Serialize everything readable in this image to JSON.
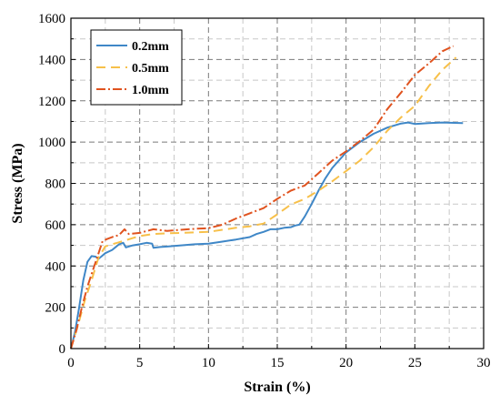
{
  "chart_data": {
    "type": "line",
    "xlabel": "Strain (%)",
    "ylabel": "Stress (MPa)",
    "xlim": [
      0,
      30
    ],
    "ylim": [
      0,
      1600
    ],
    "xticks": [
      0,
      5,
      10,
      15,
      20,
      25,
      30
    ],
    "yticks": [
      0,
      200,
      400,
      600,
      800,
      1000,
      1200,
      1400,
      1600
    ],
    "grid": true,
    "legend_position": "top-left",
    "series": [
      {
        "name": "0.2mm",
        "color": "#3f87c7",
        "dash": "solid",
        "points": [
          [
            0,
            0
          ],
          [
            0.3,
            80
          ],
          [
            0.6,
            200
          ],
          [
            0.9,
            330
          ],
          [
            1.2,
            420
          ],
          [
            1.5,
            448
          ],
          [
            1.8,
            445
          ],
          [
            2.0,
            435
          ],
          [
            2.2,
            445
          ],
          [
            2.5,
            462
          ],
          [
            3.0,
            478
          ],
          [
            3.5,
            505
          ],
          [
            3.8,
            512
          ],
          [
            4.0,
            490
          ],
          [
            4.5,
            500
          ],
          [
            5.0,
            505
          ],
          [
            5.5,
            512
          ],
          [
            5.9,
            508
          ],
          [
            6.0,
            488
          ],
          [
            6.5,
            492
          ],
          [
            7.0,
            494
          ],
          [
            8.0,
            500
          ],
          [
            9.0,
            505
          ],
          [
            10.0,
            508
          ],
          [
            11.0,
            518
          ],
          [
            12.0,
            528
          ],
          [
            13.0,
            540
          ],
          [
            13.5,
            555
          ],
          [
            14.0,
            565
          ],
          [
            14.5,
            578
          ],
          [
            15.0,
            578
          ],
          [
            15.5,
            585
          ],
          [
            16.0,
            588
          ],
          [
            16.3,
            596
          ],
          [
            16.6,
            600
          ],
          [
            17.0,
            640
          ],
          [
            17.5,
            700
          ],
          [
            18.0,
            765
          ],
          [
            18.5,
            825
          ],
          [
            19.0,
            875
          ],
          [
            20.0,
            950
          ],
          [
            21.0,
            1000
          ],
          [
            22.0,
            1040
          ],
          [
            23.0,
            1070
          ],
          [
            24.0,
            1090
          ],
          [
            24.5,
            1095
          ],
          [
            25.0,
            1088
          ],
          [
            26.0,
            1092
          ],
          [
            27.0,
            1095
          ],
          [
            28.5,
            1092
          ]
        ]
      },
      {
        "name": "0.5mm",
        "color": "#f7c04a",
        "dash": "10,6",
        "points": [
          [
            0,
            0
          ],
          [
            0.5,
            110
          ],
          [
            1.0,
            230
          ],
          [
            1.5,
            330
          ],
          [
            2.0,
            440
          ],
          [
            2.5,
            495
          ],
          [
            3.0,
            505
          ],
          [
            3.5,
            515
          ],
          [
            4.0,
            525
          ],
          [
            4.5,
            535
          ],
          [
            5.0,
            545
          ],
          [
            6.0,
            555
          ],
          [
            7.0,
            558
          ],
          [
            8.0,
            560
          ],
          [
            9.0,
            563
          ],
          [
            10.0,
            565
          ],
          [
            11.0,
            575
          ],
          [
            12.0,
            585
          ],
          [
            13.0,
            592
          ],
          [
            14.0,
            605
          ],
          [
            15.0,
            650
          ],
          [
            16.0,
            698
          ],
          [
            17.0,
            725
          ],
          [
            18.0,
            765
          ],
          [
            19.0,
            810
          ],
          [
            20.0,
            860
          ],
          [
            21.0,
            910
          ],
          [
            22.0,
            975
          ],
          [
            23.0,
            1055
          ],
          [
            24.0,
            1120
          ],
          [
            25.0,
            1175
          ],
          [
            26.0,
            1270
          ],
          [
            27.0,
            1350
          ],
          [
            28.0,
            1410
          ]
        ]
      },
      {
        "name": "1.0mm",
        "color": "#e0531f",
        "dash": "10,3,2,3",
        "points": [
          [
            0,
            0
          ],
          [
            0.4,
            90
          ],
          [
            0.8,
            200
          ],
          [
            1.2,
            300
          ],
          [
            1.6,
            380
          ],
          [
            2.0,
            460
          ],
          [
            2.3,
            520
          ],
          [
            2.6,
            530
          ],
          [
            3.0,
            540
          ],
          [
            3.5,
            550
          ],
          [
            3.9,
            578
          ],
          [
            4.2,
            555
          ],
          [
            5.0,
            560
          ],
          [
            6.0,
            578
          ],
          [
            7.0,
            570
          ],
          [
            8.0,
            575
          ],
          [
            9.0,
            580
          ],
          [
            10.0,
            583
          ],
          [
            11.0,
            600
          ],
          [
            12.0,
            630
          ],
          [
            13.0,
            655
          ],
          [
            14.0,
            680
          ],
          [
            15.0,
            725
          ],
          [
            16.0,
            765
          ],
          [
            17.0,
            790
          ],
          [
            18.0,
            850
          ],
          [
            19.0,
            910
          ],
          [
            20.0,
            955
          ],
          [
            21.0,
            1005
          ],
          [
            22.0,
            1060
          ],
          [
            23.0,
            1160
          ],
          [
            24.0,
            1240
          ],
          [
            25.0,
            1325
          ],
          [
            26.0,
            1380
          ],
          [
            27.0,
            1440
          ],
          [
            27.8,
            1465
          ]
        ]
      }
    ]
  }
}
